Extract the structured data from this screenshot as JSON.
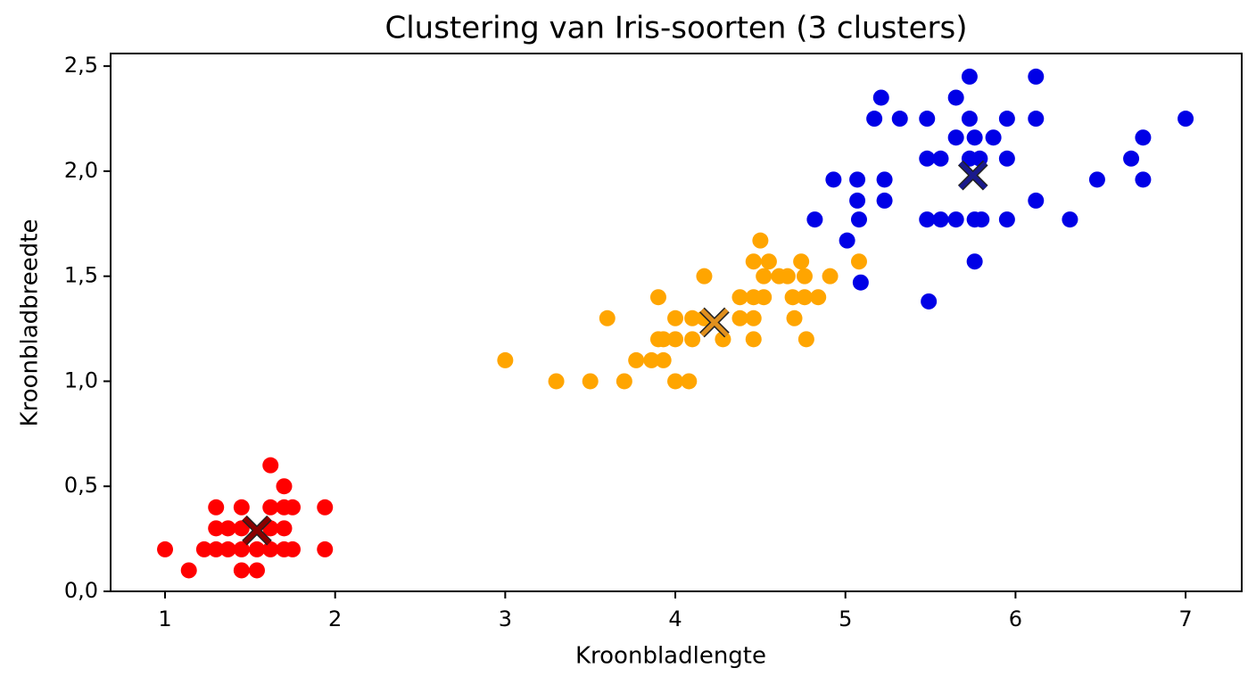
{
  "chart_data": {
    "type": "scatter",
    "title": "Clustering van Iris-soorten (3 clusters)",
    "xlabel": "Kroonbladlengte",
    "ylabel": "Kroonbladbreedte",
    "xlim": [
      0.68,
      7.33
    ],
    "ylim": [
      0,
      2.56
    ],
    "xticks": [
      1,
      2,
      3,
      4,
      5,
      6,
      7
    ],
    "yticks": [
      {
        "value": 0,
        "label": "0,0"
      },
      {
        "value": 0.5,
        "label": "0,5"
      },
      {
        "value": 1,
        "label": "1,0"
      },
      {
        "value": 1.5,
        "label": "1,5"
      },
      {
        "value": 2,
        "label": "2,0"
      },
      {
        "value": 2.5,
        "label": "2,5"
      }
    ],
    "grid": false,
    "series": [
      {
        "color": "#ff0000",
        "x": [
          1.0,
          1.14,
          1.23,
          1.3,
          1.3,
          1.3,
          1.37,
          1.37,
          1.45,
          1.45,
          1.45,
          1.45,
          1.54,
          1.54,
          1.62,
          1.62,
          1.62,
          1.62,
          1.7,
          1.7,
          1.7,
          1.7,
          1.75,
          1.75,
          1.94,
          1.94
        ],
        "y": [
          0.2,
          0.1,
          0.2,
          0.4,
          0.3,
          0.2,
          0.3,
          0.2,
          0.4,
          0.3,
          0.2,
          0.1,
          0.1,
          0.2,
          0.4,
          0.3,
          0.2,
          0.6,
          0.5,
          0.4,
          0.3,
          0.2,
          0.4,
          0.2,
          0.4,
          0.2
        ]
      },
      {
        "color": "#ffa500",
        "x": [
          3.0,
          3.3,
          3.5,
          3.6,
          3.7,
          3.77,
          3.9,
          3.9,
          3.86,
          3.93,
          3.93,
          4.0,
          4.08,
          4.0,
          4.0,
          4.1,
          4.1,
          4.17,
          4.17,
          4.28,
          4.38,
          4.38,
          4.46,
          4.46,
          4.46,
          4.46,
          4.5,
          4.52,
          4.52,
          4.55,
          4.61,
          4.66,
          4.69,
          4.7,
          4.74,
          4.76,
          4.76,
          4.77,
          4.84,
          4.91,
          5.08
        ],
        "y": [
          1.1,
          1.0,
          1.0,
          1.3,
          1.0,
          1.1,
          1.4,
          1.2,
          1.1,
          1.1,
          1.2,
          1.0,
          1.0,
          1.3,
          1.2,
          1.3,
          1.2,
          1.5,
          1.3,
          1.2,
          1.4,
          1.3,
          1.57,
          1.4,
          1.3,
          1.2,
          1.67,
          1.5,
          1.4,
          1.57,
          1.5,
          1.5,
          1.4,
          1.3,
          1.57,
          1.5,
          1.4,
          1.2,
          1.4,
          1.5,
          1.57
        ]
      },
      {
        "color": "#0000e6",
        "x": [
          5.49,
          5.01,
          5.09,
          4.82,
          4.93,
          5.07,
          5.07,
          5.08,
          5.23,
          5.23,
          5.17,
          5.21,
          5.32,
          5.48,
          5.48,
          5.48,
          5.56,
          5.56,
          5.65,
          5.65,
          5.65,
          5.73,
          5.73,
          5.73,
          5.76,
          5.76,
          5.79,
          5.8,
          5.76,
          5.87,
          5.95,
          5.95,
          5.95,
          6.12,
          6.12,
          6.12,
          6.32,
          6.48,
          6.68,
          6.75,
          6.75,
          7.0
        ],
        "y": [
          1.38,
          1.67,
          1.47,
          1.77,
          1.96,
          1.96,
          1.86,
          1.77,
          1.96,
          1.86,
          2.25,
          2.35,
          2.25,
          2.25,
          2.06,
          1.77,
          2.06,
          1.77,
          2.35,
          2.16,
          1.77,
          2.45,
          2.25,
          2.06,
          2.16,
          1.77,
          2.06,
          1.77,
          1.57,
          2.16,
          2.25,
          2.06,
          1.77,
          2.45,
          2.25,
          1.86,
          1.77,
          1.96,
          2.06,
          2.16,
          1.96,
          2.25
        ]
      }
    ],
    "centroids": {
      "x": [
        1.54,
        4.23,
        5.75
      ],
      "y": [
        0.29,
        1.28,
        1.98
      ],
      "colors": [
        "#8b0000",
        "#e0901e",
        "#1a1a8c"
      ]
    }
  }
}
